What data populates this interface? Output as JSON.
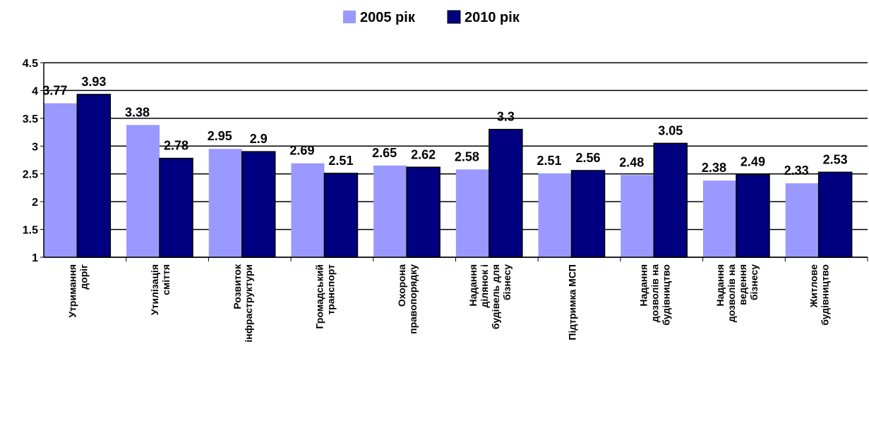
{
  "chart_data": {
    "type": "bar",
    "categories": [
      "Утримання\nдоріг",
      "Утилізація\nсміття",
      "Розвиток\nінфраструктури",
      "Громадський\nтранспорт",
      "Охорона\nправопорядку",
      "Надання\nділянок і\nбудівель для\nбізнесу",
      "Підтримка МСП",
      "Надання\nдозволів на\nбудівництво",
      "Надання\nдозволів на\nведення\nбізнесу",
      "Житлове\nбудівництво"
    ],
    "series": [
      {
        "name": "2005 рік",
        "color": "#9999ff",
        "values": [
          3.77,
          3.38,
          2.95,
          2.69,
          2.65,
          2.58,
          2.51,
          2.48,
          2.38,
          2.33
        ]
      },
      {
        "name": "2010 рік",
        "color": "#000080",
        "values": [
          3.93,
          2.78,
          2.9,
          2.51,
          2.62,
          3.3,
          2.56,
          3.05,
          2.49,
          2.53
        ]
      }
    ],
    "ylim": [
      1,
      4.5
    ],
    "yticks": [
      1,
      1.5,
      2,
      2.5,
      3,
      3.5,
      4,
      4.5
    ],
    "grid": true,
    "legend": "top"
  }
}
